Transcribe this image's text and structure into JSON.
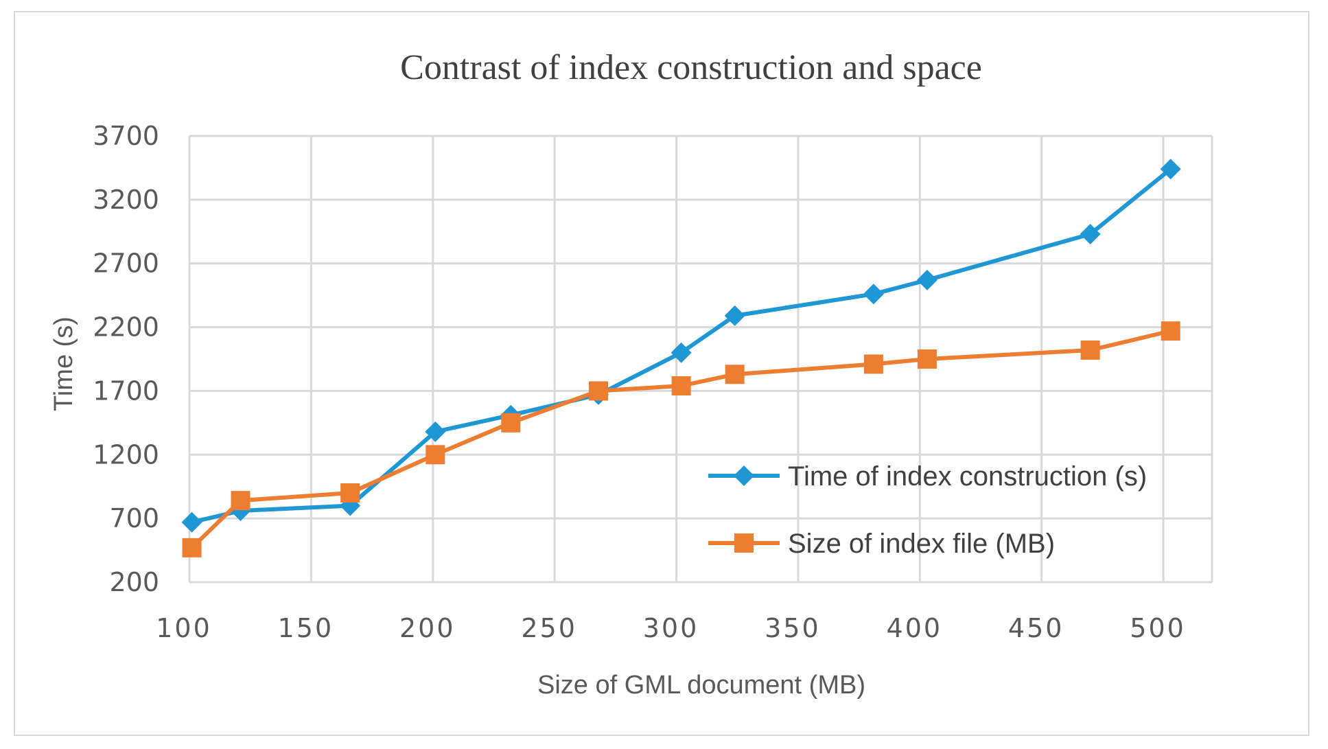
{
  "chart_data": {
    "type": "line",
    "title": "Contrast of index construction and space",
    "xlabel": "Size of GML document (MB)",
    "ylabel": "Time  (s)",
    "xlim": [
      100,
      520
    ],
    "ylim": [
      200,
      3700
    ],
    "xticks": [
      100,
      150,
      200,
      250,
      300,
      350,
      400,
      450,
      500
    ],
    "yticks": [
      200,
      700,
      1200,
      1700,
      2200,
      2700,
      3200,
      3700
    ],
    "grid": true,
    "legend_position": "right",
    "series": [
      {
        "name": "Time of index construction (s)",
        "color": "#1f97d4",
        "marker": "diamond",
        "x": [
          101,
          121,
          166,
          201,
          232,
          268,
          302,
          324,
          381,
          403,
          470,
          503
        ],
        "y": [
          670,
          760,
          800,
          1380,
          1510,
          1670,
          2000,
          2290,
          2460,
          2570,
          2930,
          3440
        ]
      },
      {
        "name": "Size of index file (MB)",
        "color": "#ed7d31",
        "marker": "square",
        "x": [
          101,
          121,
          166,
          201,
          232,
          268,
          302,
          324,
          381,
          403,
          470,
          503
        ],
        "y": [
          470,
          840,
          900,
          1200,
          1450,
          1700,
          1740,
          1830,
          1910,
          1950,
          2020,
          2170
        ]
      }
    ]
  }
}
